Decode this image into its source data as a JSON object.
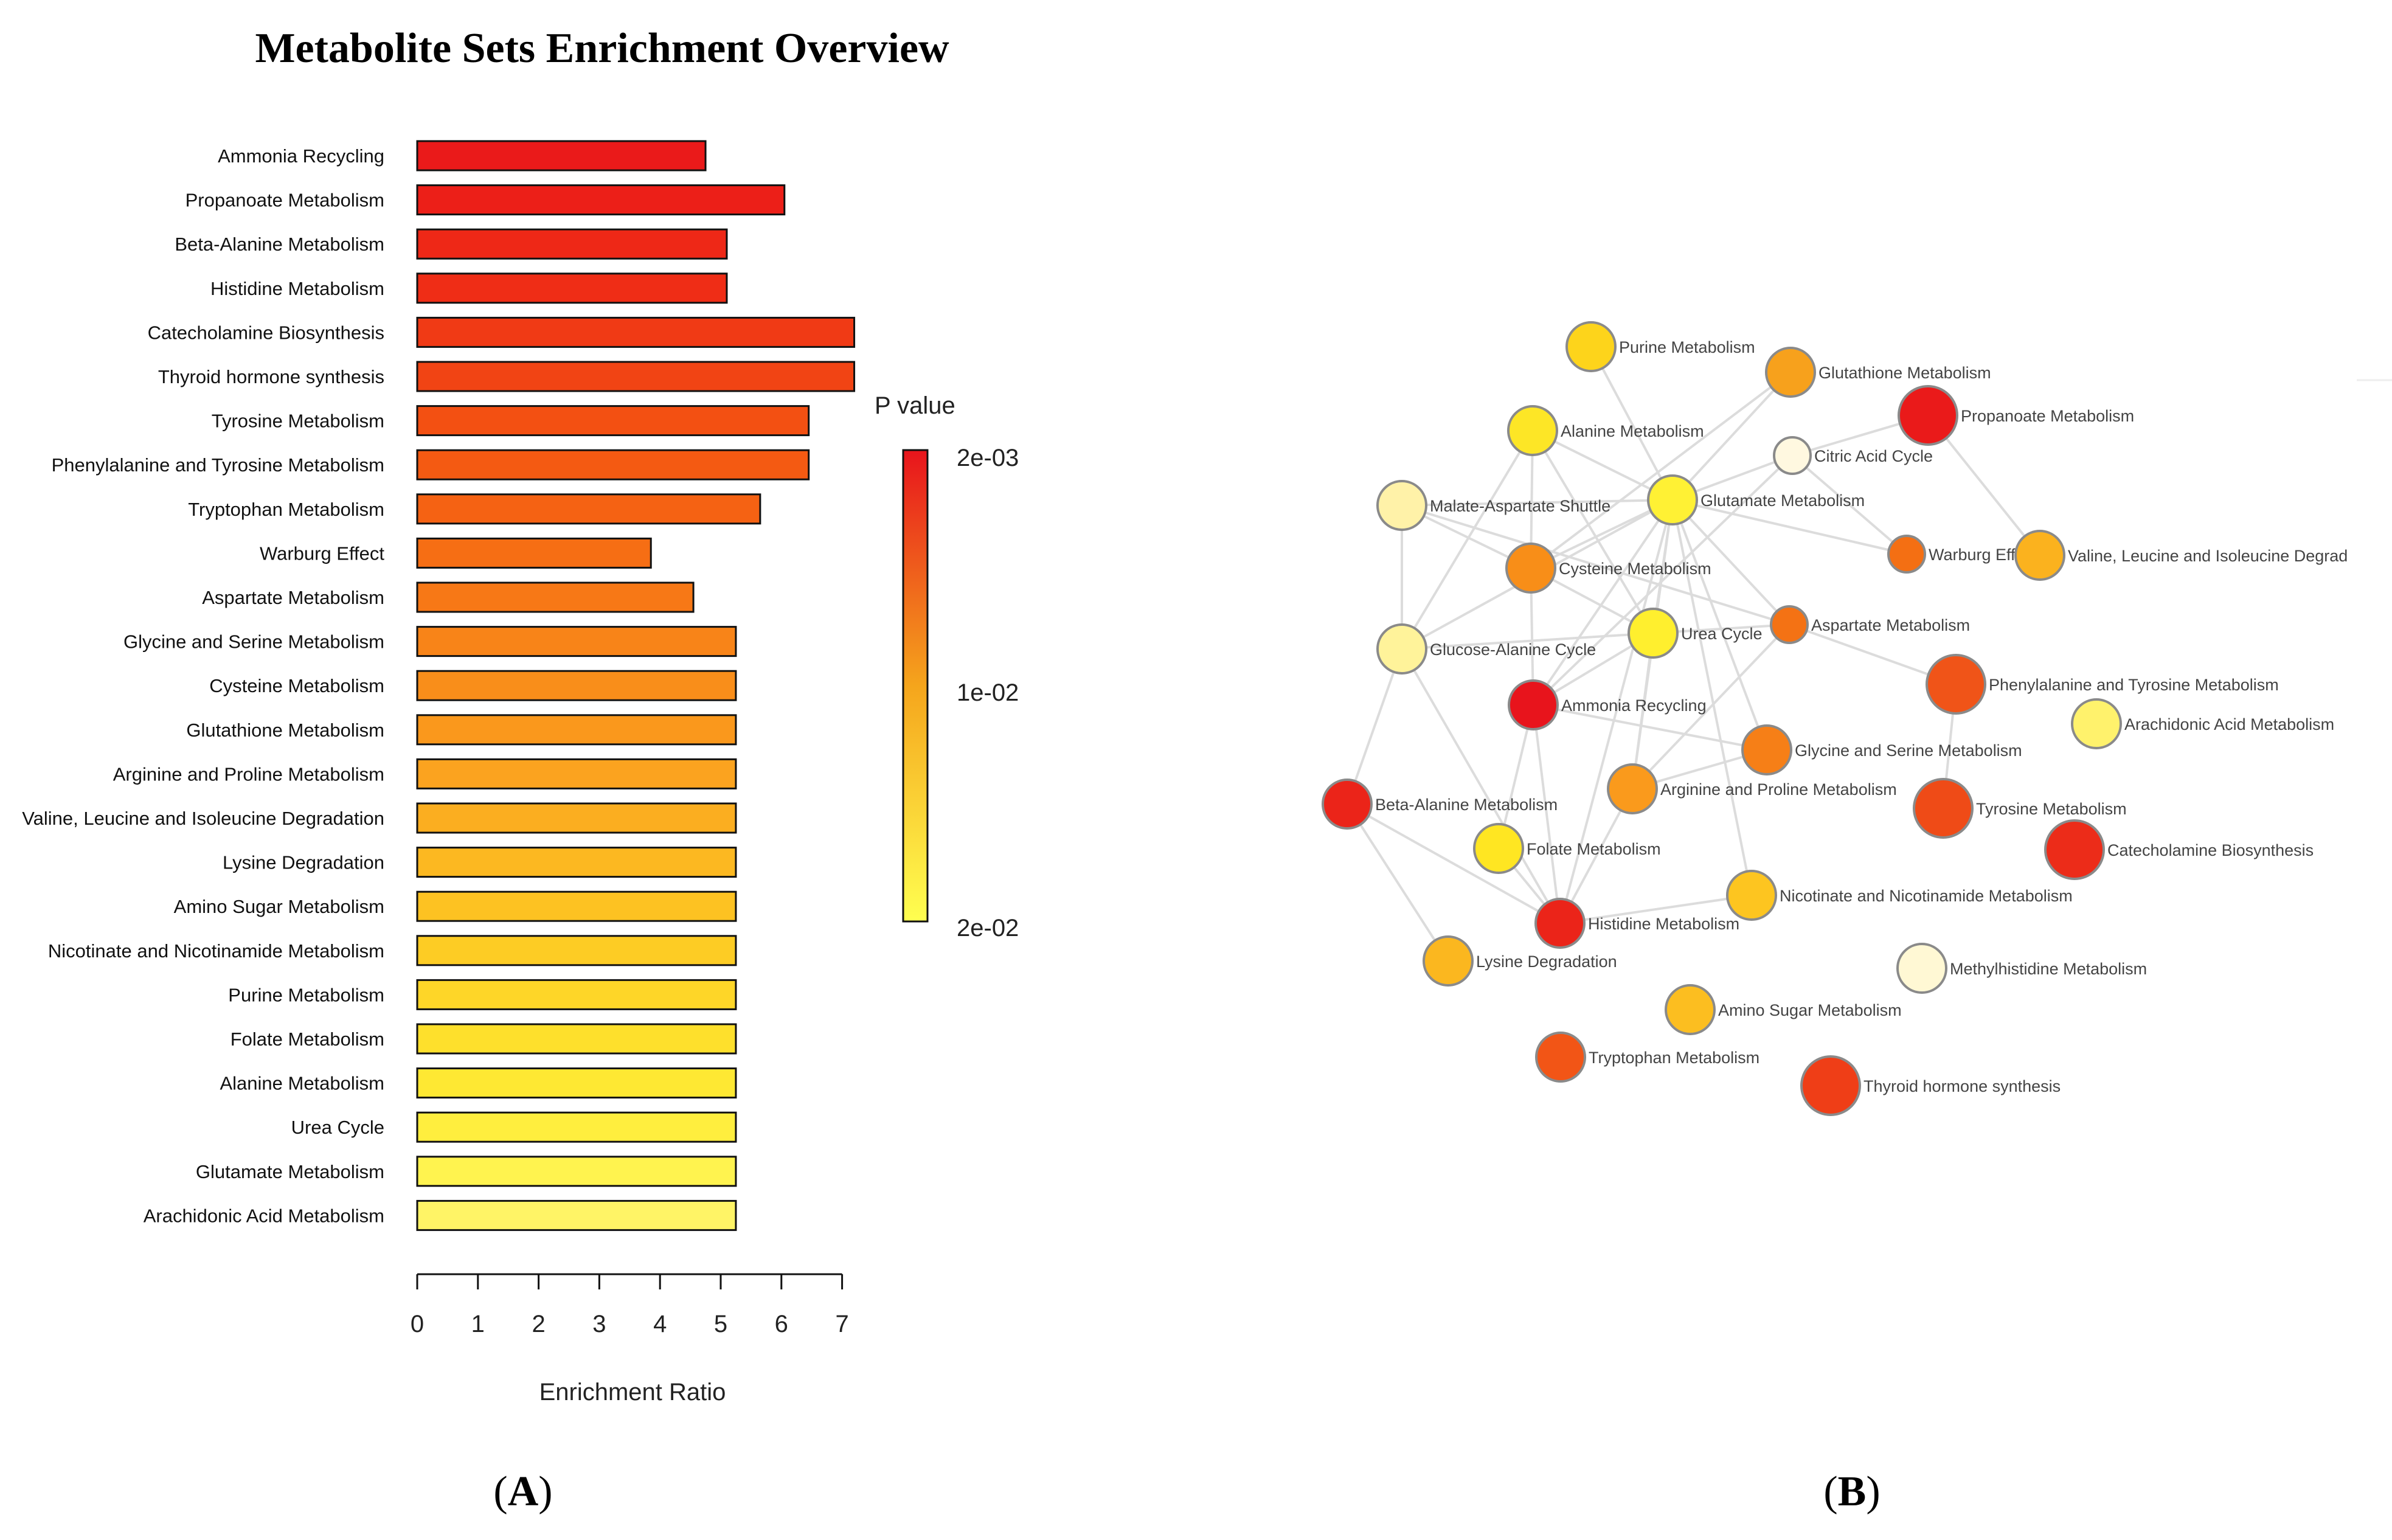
{
  "panel_labels": {
    "a": "A",
    "b": "B"
  },
  "chart_data": [
    {
      "type": "bar",
      "orientation": "horizontal",
      "title": "Metabolite Sets Enrichment Overview",
      "xlabel": "Enrichment Ratio",
      "xlim": [
        0,
        7
      ],
      "xticks": [
        0,
        1,
        2,
        3,
        4,
        5,
        6,
        7
      ],
      "legend": {
        "title": "P value",
        "placement": "right",
        "labels": [
          "2e-03",
          "1e-02",
          "2e-02"
        ],
        "colors": [
          "#e8141c",
          "#f5a51c",
          "#ffff50"
        ]
      },
      "categories": [
        "Ammonia Recycling",
        "Propanoate Metabolism",
        "Beta-Alanine Metabolism",
        "Histidine Metabolism",
        "Catecholamine Biosynthesis",
        "Thyroid hormone synthesis",
        "Tyrosine Metabolism",
        "Phenylalanine and Tyrosine Metabolism",
        "Tryptophan Metabolism",
        "Warburg Effect",
        "Aspartate Metabolism",
        "Glycine and Serine Metabolism",
        "Cysteine Metabolism",
        "Glutathione Metabolism",
        "Arginine and Proline Metabolism",
        "Valine, Leucine and Isoleucine Degradation",
        "Lysine Degradation",
        "Amino Sugar Metabolism",
        "Nicotinate and Nicotinamide Metabolism",
        "Purine Metabolism",
        "Folate Metabolism",
        "Alanine Metabolism",
        "Urea Cycle",
        "Glutamate Metabolism",
        "Arachidonic Acid Metabolism"
      ],
      "values": [
        4.75,
        6.05,
        5.1,
        5.1,
        7.2,
        7.2,
        6.45,
        6.45,
        5.65,
        3.85,
        4.55,
        5.25,
        5.25,
        5.25,
        5.25,
        5.25,
        5.25,
        5.25,
        5.25,
        5.25,
        5.25,
        5.25,
        5.25,
        5.25,
        5.25
      ],
      "colors": [
        "#ea1a1a",
        "#ec1f18",
        "#ee2817",
        "#ef2d16",
        "#f03a15",
        "#f14414",
        "#f35012",
        "#f45a12",
        "#f56213",
        "#f66e14",
        "#f77816",
        "#f88418",
        "#f98e1a",
        "#fa981c",
        "#fba31f",
        "#fbae20",
        "#fcb821",
        "#fdc222",
        "#fdcc24",
        "#fed628",
        "#fee02c",
        "#fee833",
        "#ffee3e",
        "#fff34f",
        "#fff466"
      ],
      "grid": false
    },
    {
      "type": "network",
      "nodes": [
        {
          "label": "Purine Metabolism",
          "color": "#fdd41b",
          "size": "medium"
        },
        {
          "label": "Glutathione Metabolism",
          "color": "#f7a11c",
          "size": "medium"
        },
        {
          "label": "Propanoate Metabolism",
          "color": "#ea1a1a",
          "size": "large"
        },
        {
          "label": "Alanine Metabolism",
          "color": "#fde626",
          "size": "medium"
        },
        {
          "label": "Citric Acid Cycle",
          "color": "#fff8e0",
          "size": "small"
        },
        {
          "label": "Malate-Aspartate Shuttle",
          "color": "#fff2a8",
          "size": "medium"
        },
        {
          "label": "Glutamate Metabolism",
          "color": "#fff134",
          "size": "medium"
        },
        {
          "label": "Warburg Effect",
          "color": "#f46f13",
          "size": "small"
        },
        {
          "label": "Valine, Leucine and Isoleucine Degrad",
          "color": "#fbb21e",
          "size": "medium"
        },
        {
          "label": "Cysteine Metabolism",
          "color": "#f88e18",
          "size": "medium"
        },
        {
          "label": "Glucose-Alanine Cycle",
          "color": "#fff39a",
          "size": "medium"
        },
        {
          "label": "Urea Cycle",
          "color": "#ffef2e",
          "size": "medium"
        },
        {
          "label": "Aspartate Metabolism",
          "color": "#f47214",
          "size": "small"
        },
        {
          "label": "Phenylalanine and Tyrosine Metabolism",
          "color": "#f05418",
          "size": "large"
        },
        {
          "label": "Arachidonic Acid Metabolism",
          "color": "#fff26c",
          "size": "medium"
        },
        {
          "label": "Ammonia Recycling",
          "color": "#e8141c",
          "size": "medium"
        },
        {
          "label": "Glycine and Serine Metabolism",
          "color": "#f67f17",
          "size": "medium"
        },
        {
          "label": "Beta-Alanine Metabolism",
          "color": "#eb2419",
          "size": "medium"
        },
        {
          "label": "Arginine and Proline Metabolism",
          "color": "#fa9a1c",
          "size": "medium"
        },
        {
          "label": "Tyrosine Metabolism",
          "color": "#ef4b17",
          "size": "large"
        },
        {
          "label": "Catecholamine Biosynthesis",
          "color": "#ec2c19",
          "size": "large"
        },
        {
          "label": "Folate Metabolism",
          "color": "#ffe622",
          "size": "medium"
        },
        {
          "label": "Nicotinate and Nicotinamide Metabolism",
          "color": "#fdc520",
          "size": "medium"
        },
        {
          "label": "Histidine Metabolism",
          "color": "#eb2419",
          "size": "medium"
        },
        {
          "label": "Lysine Degradation",
          "color": "#fbb71f",
          "size": "medium"
        },
        {
          "label": "Methylhistidine Metabolism",
          "color": "#fff8d4",
          "size": "medium"
        },
        {
          "label": "Amino Sugar Metabolism",
          "color": "#fcbe20",
          "size": "medium"
        },
        {
          "label": "Tryptophan Metabolism",
          "color": "#f25516",
          "size": "medium"
        },
        {
          "label": "Thyroid hormone synthesis",
          "color": "#ef3e17",
          "size": "large"
        }
      ],
      "edges": [
        [
          "Purine Metabolism",
          "Glutamate Metabolism"
        ],
        [
          "Glutathione Metabolism",
          "Glutamate Metabolism"
        ],
        [
          "Glutathione Metabolism",
          "Cysteine Metabolism"
        ],
        [
          "Propanoate Metabolism",
          "Citric Acid Cycle"
        ],
        [
          "Propanoate Metabolism",
          "Valine, Leucine and Isoleucine Degrad"
        ],
        [
          "Alanine Metabolism",
          "Glucose-Alanine Cycle"
        ],
        [
          "Alanine Metabolism",
          "Glutamate Metabolism"
        ],
        [
          "Alanine Metabolism",
          "Urea Cycle"
        ],
        [
          "Alanine Metabolism",
          "Cysteine Metabolism"
        ],
        [
          "Citric Acid Cycle",
          "Warburg Effect"
        ],
        [
          "Citric Acid Cycle",
          "Glutamate Metabolism"
        ],
        [
          "Citric Acid Cycle",
          "Ammonia Recycling"
        ],
        [
          "Malate-Aspartate Shuttle",
          "Glutamate Metabolism"
        ],
        [
          "Malate-Aspartate Shuttle",
          "Cysteine Metabolism"
        ],
        [
          "Malate-Aspartate Shuttle",
          "Glucose-Alanine Cycle"
        ],
        [
          "Malate-Aspartate Shuttle",
          "Aspartate Metabolism"
        ],
        [
          "Glutamate Metabolism",
          "Warburg Effect"
        ],
        [
          "Glutamate Metabolism",
          "Cysteine Metabolism"
        ],
        [
          "Glutamate Metabolism",
          "Urea Cycle"
        ],
        [
          "Glutamate Metabolism",
          "Aspartate Metabolism"
        ],
        [
          "Glutamate Metabolism",
          "Ammonia Recycling"
        ],
        [
          "Glutamate Metabolism",
          "Glucose-Alanine Cycle"
        ],
        [
          "Glutamate Metabolism",
          "Arginine and Proline Metabolism"
        ],
        [
          "Glutamate Metabolism",
          "Nicotinate and Nicotinamide Metabolism"
        ],
        [
          "Glutamate Metabolism",
          "Glycine and Serine Metabolism"
        ],
        [
          "Glutamate Metabolism",
          "Histidine Metabolism"
        ],
        [
          "Cysteine Metabolism",
          "Urea Cycle"
        ],
        [
          "Cysteine Metabolism",
          "Ammonia Recycling"
        ],
        [
          "Glucose-Alanine Cycle",
          "Urea Cycle"
        ],
        [
          "Glucose-Alanine Cycle",
          "Beta-Alanine Metabolism"
        ],
        [
          "Glucose-Alanine Cycle",
          "Histidine Metabolism"
        ],
        [
          "Urea Cycle",
          "Aspartate Metabolism"
        ],
        [
          "Urea Cycle",
          "Ammonia Recycling"
        ],
        [
          "Urea Cycle",
          "Arginine and Proline Metabolism"
        ],
        [
          "Aspartate Metabolism",
          "Phenylalanine and Tyrosine Metabolism"
        ],
        [
          "Aspartate Metabolism",
          "Arginine and Proline Metabolism"
        ],
        [
          "Phenylalanine and Tyrosine Metabolism",
          "Tyrosine Metabolism"
        ],
        [
          "Ammonia Recycling",
          "Glycine and Serine Metabolism"
        ],
        [
          "Ammonia Recycling",
          "Histidine Metabolism"
        ],
        [
          "Ammonia Recycling",
          "Folate Metabolism"
        ],
        [
          "Beta-Alanine Metabolism",
          "Histidine Metabolism"
        ],
        [
          "Beta-Alanine Metabolism",
          "Lysine Degradation"
        ],
        [
          "Arginine and Proline Metabolism",
          "Histidine Metabolism"
        ],
        [
          "Arginine and Proline Metabolism",
          "Glycine and Serine Metabolism"
        ],
        [
          "Folate Metabolism",
          "Histidine Metabolism"
        ],
        [
          "Nicotinate and Nicotinamide Metabolism",
          "Histidine Metabolism"
        ]
      ]
    }
  ]
}
